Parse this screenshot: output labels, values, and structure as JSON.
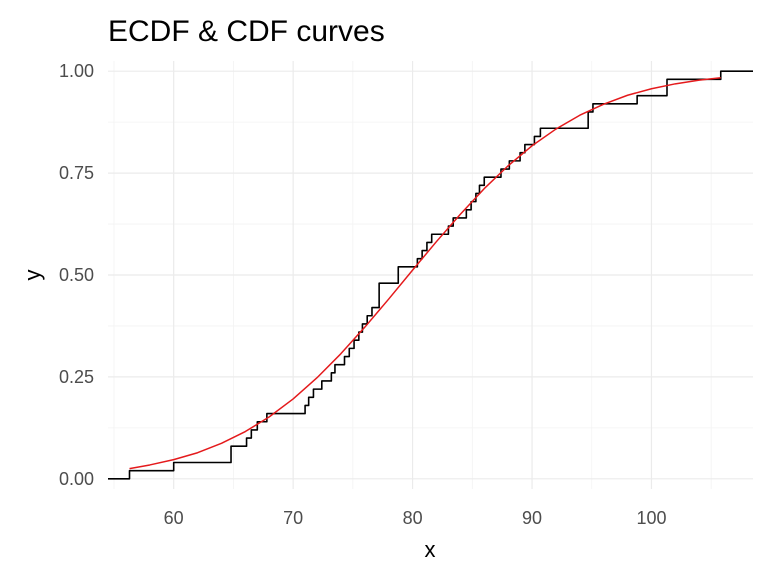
{
  "chart_data": {
    "type": "line",
    "title": "ECDF & CDF curves",
    "xlabel": "x",
    "ylabel": "y",
    "xlim": [
      54.5,
      108.5
    ],
    "ylim": [
      -0.025,
      1.025
    ],
    "x_ticks": [
      60,
      70,
      80,
      90,
      100
    ],
    "x_tick_labels": [
      "60",
      "70",
      "80",
      "90",
      "100"
    ],
    "y_ticks": [
      0,
      0.25,
      0.5,
      0.75,
      1
    ],
    "y_tick_labels": [
      "0.00",
      "0.25",
      "0.50",
      "0.75",
      "1.00"
    ],
    "grid": true,
    "legend": "none",
    "colors": {
      "ecdf": "#000000",
      "cdf": "#e41a1c",
      "grid": "#ebebeb"
    },
    "series": [
      {
        "style": "step",
        "color": "#000000",
        "x": [
          54.5,
          56.3,
          60.0,
          64.8,
          66.1,
          66.5,
          67.0,
          67.8,
          71.0,
          71.3,
          71.7,
          72.4,
          73.2,
          73.5,
          74.3,
          74.7,
          75.1,
          75.5,
          75.8,
          76.2,
          76.6,
          77.2,
          78.8,
          80.4,
          80.8,
          81.2,
          81.6,
          83.0,
          83.4,
          84.5,
          84.9,
          85.3,
          85.6,
          86.0,
          87.4,
          88.1,
          89.0,
          89.4,
          90.2,
          90.7,
          94.7,
          95.1,
          98.8,
          101.3,
          105.8,
          108.5
        ],
        "y": [
          0.0,
          0.02,
          0.04,
          0.08,
          0.1,
          0.12,
          0.14,
          0.16,
          0.18,
          0.2,
          0.22,
          0.24,
          0.26,
          0.28,
          0.3,
          0.32,
          0.34,
          0.36,
          0.38,
          0.4,
          0.42,
          0.48,
          0.52,
          0.54,
          0.56,
          0.58,
          0.6,
          0.62,
          0.64,
          0.66,
          0.68,
          0.7,
          0.72,
          0.74,
          0.76,
          0.78,
          0.8,
          0.82,
          0.84,
          0.86,
          0.9,
          0.92,
          0.94,
          0.98,
          1.0,
          1.0
        ]
      },
      {
        "style": "smooth",
        "color": "#e41a1c",
        "x": [
          56.3,
          58,
          60,
          62,
          64,
          66,
          68,
          70,
          72,
          74,
          76,
          78,
          80,
          82,
          84,
          86,
          88,
          90,
          92,
          94,
          96,
          98,
          100,
          102,
          104,
          105.8
        ],
        "y": [
          0.025,
          0.034,
          0.047,
          0.064,
          0.087,
          0.116,
          0.152,
          0.196,
          0.248,
          0.307,
          0.372,
          0.441,
          0.512,
          0.582,
          0.649,
          0.712,
          0.768,
          0.817,
          0.858,
          0.892,
          0.919,
          0.941,
          0.957,
          0.969,
          0.978,
          0.984
        ]
      }
    ]
  }
}
